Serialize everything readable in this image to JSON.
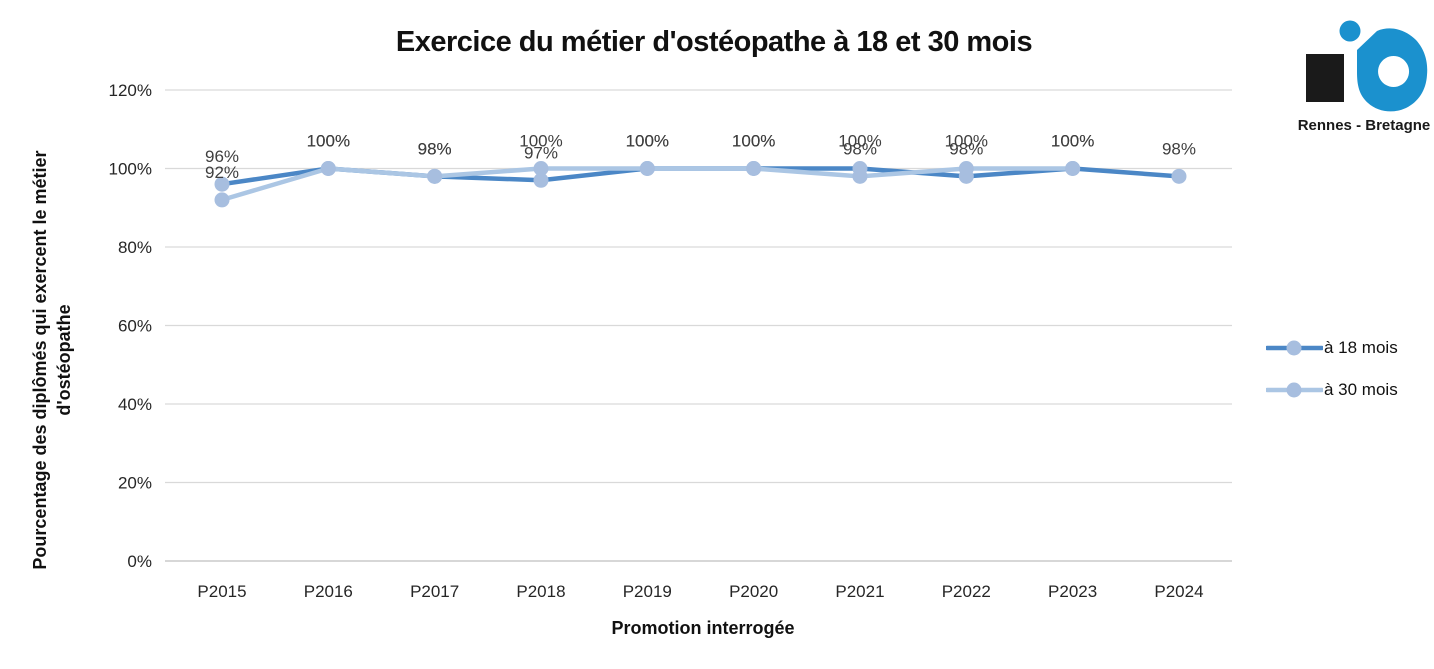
{
  "chart_data": {
    "type": "line",
    "title": "Exercice du métier d'ostéopathe à 18 et 30 mois",
    "xlabel": "Promotion interrogée",
    "ylabel": "Pourcentage des diplômés qui exercent le métier d'ostéopathe",
    "categories": [
      "P2015",
      "P2016",
      "P2017",
      "P2018",
      "P2019",
      "P2020",
      "P2021",
      "P2022",
      "P2023",
      "P2024"
    ],
    "series": [
      {
        "name": "à 18 mois",
        "color": "#4B87C6",
        "values": [
          96,
          100,
          98,
          97,
          100,
          100,
          100,
          98,
          100,
          98
        ]
      },
      {
        "name": "à 30 mois",
        "color": "#ABC6E4",
        "values": [
          92,
          100,
          98,
          100,
          100,
          100,
          98,
          100,
          100,
          null
        ]
      }
    ],
    "marker_color": "#A7BEDF",
    "ylim": [
      0,
      120
    ],
    "ytick_step": 20,
    "ytick_suffix": "%",
    "grid": true,
    "grid_color": "#D9D9D9",
    "axis_color": "#BFBFBF",
    "tick_color": "#262626",
    "data_labels": true,
    "label_format": "{v}%",
    "label_color": "#3F3F3F",
    "legend_position": "right"
  },
  "logo": {
    "text": "Rennes - Bretagne",
    "blue": "#1B91CE",
    "black": "#1A1A1A"
  }
}
